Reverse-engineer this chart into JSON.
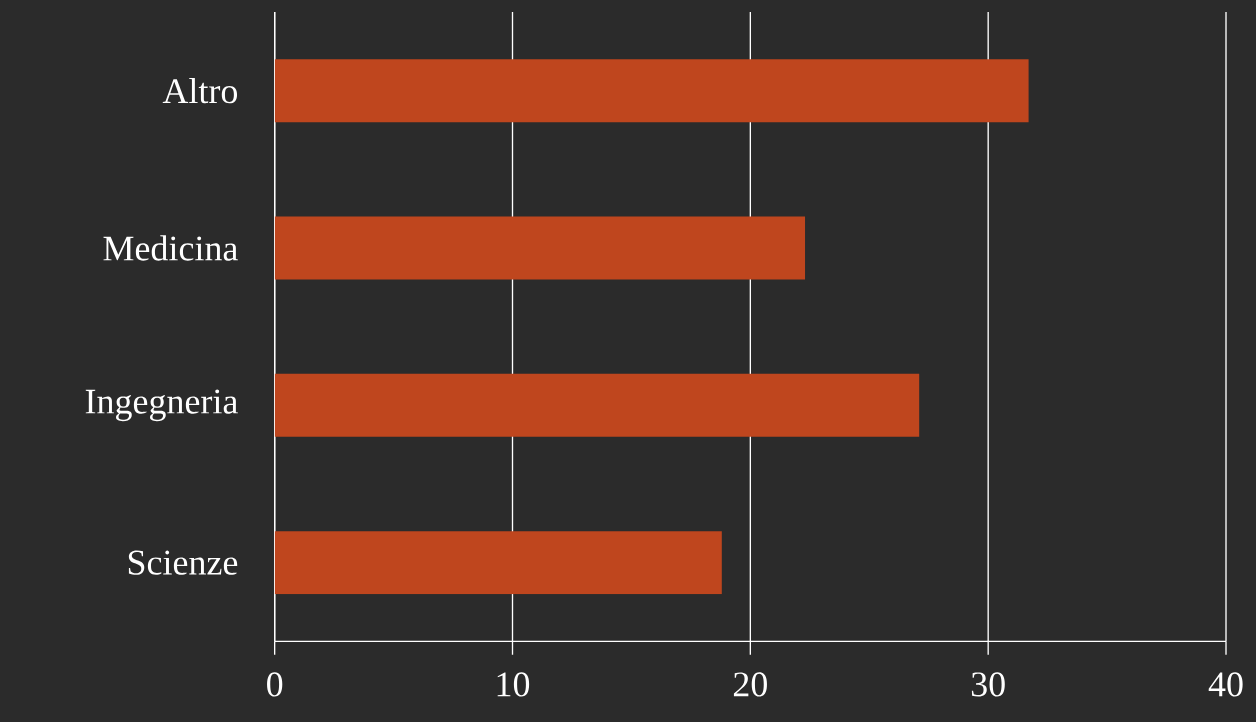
{
  "chart_data": {
    "type": "bar",
    "orientation": "horizontal",
    "categories": [
      "Altro",
      "Medicina",
      "Ingegneria",
      "Scienze"
    ],
    "values": [
      31.7,
      22.3,
      27.1,
      18.8
    ],
    "color": "#bf461e",
    "xlim": [
      0,
      40
    ],
    "xticks": [
      0,
      10,
      20,
      30,
      40
    ],
    "grid": "x"
  }
}
